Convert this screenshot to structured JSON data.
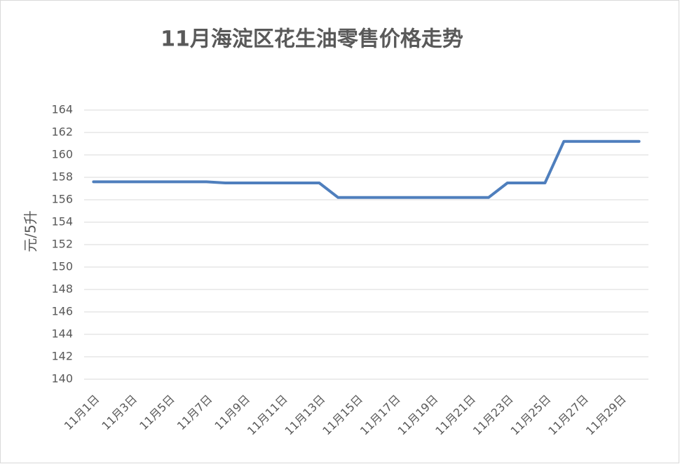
{
  "chart_data": {
    "type": "line",
    "title": "11月海淀区花生油零售价格走势",
    "y_label": "元/5升",
    "categories": [
      "11月1日",
      null,
      "11月3日",
      null,
      "11月5日",
      null,
      "11月7日",
      null,
      "11月9日",
      null,
      "11月11日",
      null,
      "11月13日",
      null,
      "11月15日",
      null,
      "11月17日",
      null,
      "11月19日",
      null,
      "11月21日",
      null,
      "11月23日",
      null,
      "11月25日",
      null,
      "11月27日",
      null,
      "11月29日",
      null
    ],
    "series": [
      {
        "name": "花生油",
        "color": "#4f7fbd",
        "values": [
          157.6,
          157.6,
          157.6,
          157.6,
          157.6,
          157.6,
          157.6,
          157.5,
          157.5,
          157.5,
          157.5,
          157.5,
          157.5,
          156.2,
          156.2,
          156.2,
          156.2,
          156.2,
          156.2,
          156.2,
          156.2,
          156.2,
          157.5,
          157.5,
          157.5,
          161.2,
          161.2,
          161.2,
          161.2,
          161.2
        ]
      }
    ],
    "ylim": [
      140,
      164
    ],
    "yticks": [
      140,
      142,
      144,
      146,
      148,
      150,
      152,
      154,
      156,
      158,
      160,
      162,
      164
    ],
    "grid": true
  }
}
